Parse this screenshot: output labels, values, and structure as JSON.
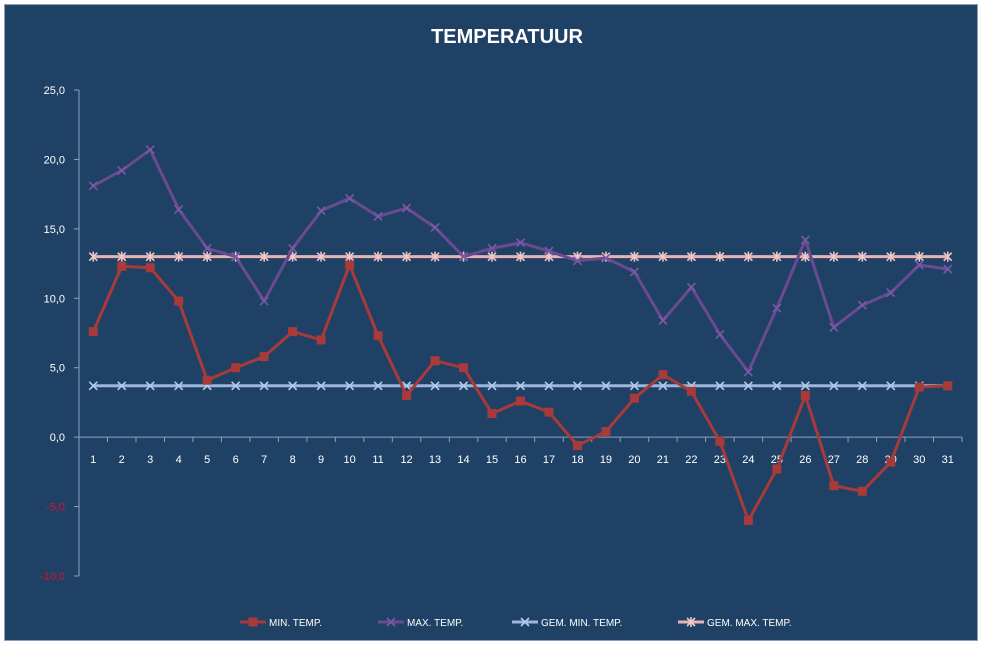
{
  "chart_data": {
    "type": "line",
    "title": "TEMPERATUUR",
    "xlabel": "",
    "ylabel": "",
    "x": [
      1,
      2,
      3,
      4,
      5,
      6,
      7,
      8,
      9,
      10,
      11,
      12,
      13,
      14,
      15,
      16,
      17,
      18,
      19,
      20,
      21,
      22,
      23,
      24,
      25,
      26,
      27,
      28,
      29,
      30,
      31
    ],
    "x_tick_labels": [
      "1",
      "2",
      "3",
      "4",
      "5",
      "6",
      "7",
      "8",
      "9",
      "10",
      "11",
      "12",
      "13",
      "14",
      "15",
      "16",
      "17",
      "18",
      "19",
      "20",
      "21",
      "22",
      "23",
      "24",
      "25",
      "26",
      "27",
      "28",
      "29",
      "30",
      "31"
    ],
    "ylim": [
      -10,
      25
    ],
    "y_ticks": [
      -10,
      -5,
      0,
      5,
      10,
      15,
      20,
      25
    ],
    "y_tick_labels": [
      "-10,0",
      "-5,0",
      "0,0",
      "5,0",
      "10,0",
      "15,0",
      "20,0",
      "25,0"
    ],
    "negative_tick_color": "#e0102a",
    "grid": false,
    "legend_position": "bottom",
    "series": [
      {
        "name": "MIN. TEMP.",
        "color": "#a83a3a",
        "marker": "square",
        "values": [
          7.6,
          12.3,
          12.2,
          9.8,
          4.1,
          5.0,
          5.8,
          7.6,
          7.0,
          12.4,
          7.3,
          3.0,
          5.5,
          5.0,
          1.7,
          2.6,
          1.8,
          -0.6,
          0.4,
          2.8,
          4.5,
          3.3,
          -0.3,
          -6.0,
          -2.3,
          3.0,
          -3.5,
          -3.9,
          -1.8,
          3.6,
          3.7
        ]
      },
      {
        "name": "MAX. TEMP.",
        "color": "#6a4a90",
        "marker": "x",
        "values": [
          18.1,
          19.2,
          20.7,
          16.4,
          13.6,
          13.0,
          9.8,
          13.6,
          16.3,
          17.2,
          15.9,
          16.5,
          15.1,
          13.0,
          13.6,
          14.0,
          13.4,
          12.7,
          12.9,
          11.9,
          8.4,
          10.8,
          7.4,
          4.7,
          9.3,
          14.2,
          7.9,
          9.5,
          10.4,
          12.4,
          12.1
        ]
      },
      {
        "name": "GEM. MIN. TEMP.",
        "color": "#9cb6dc",
        "marker": "x",
        "values": [
          3.7,
          3.7,
          3.7,
          3.7,
          3.7,
          3.7,
          3.7,
          3.7,
          3.7,
          3.7,
          3.7,
          3.7,
          3.7,
          3.7,
          3.7,
          3.7,
          3.7,
          3.7,
          3.7,
          3.7,
          3.7,
          3.7,
          3.7,
          3.7,
          3.7,
          3.7,
          3.7,
          3.7,
          3.7,
          3.7,
          3.7
        ]
      },
      {
        "name": "GEM. MAX. TEMP.",
        "color": "#e6b4b4",
        "marker": "asterisk",
        "values": [
          13.0,
          13.0,
          13.0,
          13.0,
          13.0,
          13.0,
          13.0,
          13.0,
          13.0,
          13.0,
          13.0,
          13.0,
          13.0,
          13.0,
          13.0,
          13.0,
          13.0,
          13.0,
          13.0,
          13.0,
          13.0,
          13.0,
          13.0,
          13.0,
          13.0,
          13.0,
          13.0,
          13.0,
          13.0,
          13.0,
          13.0
        ]
      }
    ]
  }
}
